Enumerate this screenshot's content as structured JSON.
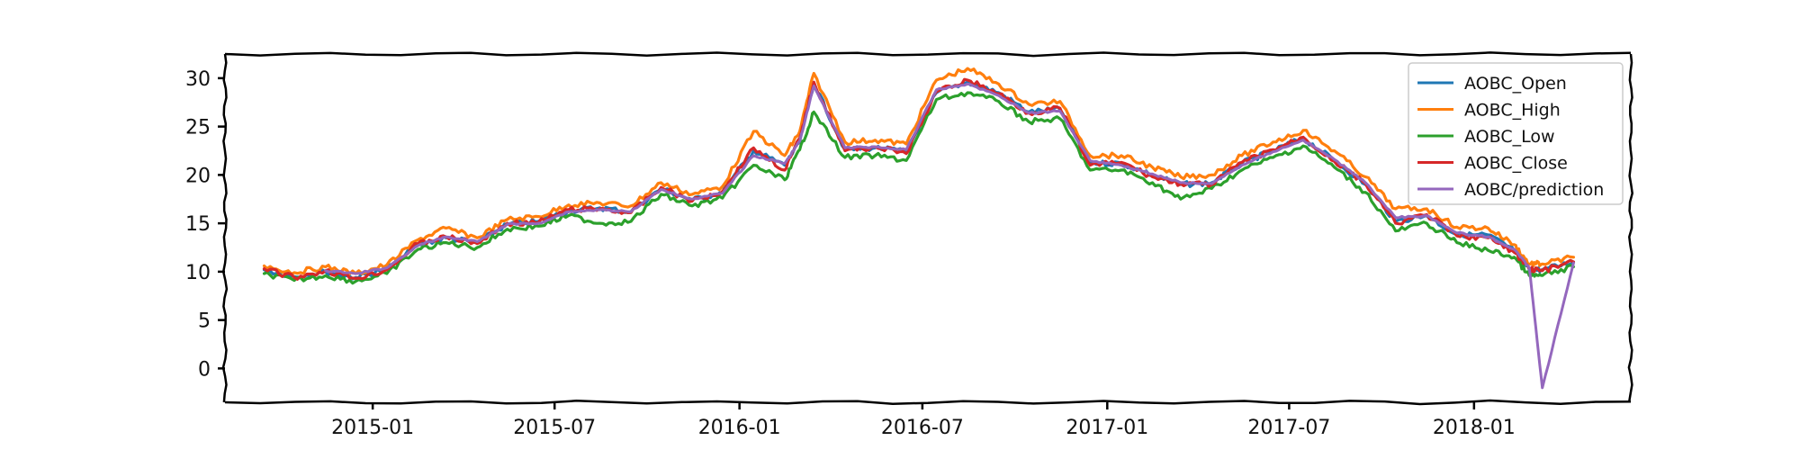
{
  "chart_data": {
    "type": "line",
    "title": "",
    "xlabel": "",
    "ylabel": "",
    "x_ticks": [
      "2015-01",
      "2015-07",
      "2016-01",
      "2016-07",
      "2017-01",
      "2017-07",
      "2018-01"
    ],
    "y_ticks": [
      0,
      5,
      10,
      15,
      20,
      25,
      30
    ],
    "xlim": [
      "2014-08-07",
      "2018-06-06"
    ],
    "ylim": [
      -3.5,
      32.5
    ],
    "grid": false,
    "legend_position": "top-right",
    "x": [
      "2014-09-15",
      "2014-10-15",
      "2014-11-15",
      "2014-12-15",
      "2015-01-15",
      "2015-02-15",
      "2015-03-15",
      "2015-04-15",
      "2015-05-15",
      "2015-06-15",
      "2015-07-15",
      "2015-08-15",
      "2015-09-15",
      "2015-10-15",
      "2015-11-15",
      "2015-12-15",
      "2016-01-15",
      "2016-02-15",
      "2016-03-01",
      "2016-03-15",
      "2016-04-15",
      "2016-05-15",
      "2016-06-15",
      "2016-07-15",
      "2016-08-15",
      "2016-09-15",
      "2016-10-15",
      "2016-11-15",
      "2016-12-15",
      "2017-01-15",
      "2017-02-15",
      "2017-03-15",
      "2017-04-15",
      "2017-05-15",
      "2017-06-15",
      "2017-07-15",
      "2017-08-15",
      "2017-09-15",
      "2017-10-15",
      "2017-11-15",
      "2017-12-15",
      "2018-01-15",
      "2018-02-10",
      "2018-02-25",
      "2018-03-10",
      "2018-04-10"
    ],
    "series": [
      {
        "name": "AOBC_Open",
        "color": "#1f77b4",
        "values": [
          10.2,
          9.5,
          10.0,
          9.4,
          10.3,
          12.8,
          13.5,
          13.0,
          14.9,
          15.2,
          16.3,
          16.6,
          16.2,
          18.6,
          17.4,
          18.2,
          22.5,
          21.0,
          23.5,
          29.5,
          22.6,
          22.8,
          22.4,
          28.5,
          29.6,
          28.5,
          26.5,
          26.8,
          21.2,
          21.2,
          20.0,
          19.0,
          19.2,
          21.2,
          22.5,
          23.8,
          21.5,
          19.0,
          15.2,
          15.8,
          13.8,
          13.8,
          12.2,
          10.2,
          10.2,
          11.0
        ]
      },
      {
        "name": "AOBC_High",
        "color": "#ff7f0e",
        "values": [
          10.6,
          9.9,
          10.5,
          9.8,
          10.7,
          13.3,
          14.5,
          13.5,
          15.4,
          15.7,
          16.9,
          17.1,
          16.8,
          19.2,
          18.0,
          18.8,
          24.5,
          22.0,
          24.5,
          30.5,
          23.4,
          23.6,
          23.2,
          29.8,
          31.0,
          29.4,
          27.3,
          27.6,
          22.0,
          22.0,
          20.8,
          19.8,
          20.0,
          22.0,
          23.4,
          24.6,
          22.5,
          19.8,
          16.5,
          16.5,
          14.6,
          14.5,
          12.8,
          10.8,
          10.8,
          11.5
        ]
      },
      {
        "name": "AOBC_Low",
        "color": "#2ca02c",
        "values": [
          9.8,
          9.1,
          9.6,
          9.0,
          9.8,
          12.3,
          13.0,
          12.5,
          14.4,
          14.7,
          15.8,
          15.0,
          15.2,
          18.0,
          16.8,
          17.6,
          21.0,
          19.5,
          22.6,
          26.5,
          21.8,
          22.0,
          21.5,
          27.8,
          28.5,
          27.6,
          25.5,
          25.8,
          20.5,
          20.5,
          19.2,
          17.5,
          18.6,
          20.5,
          21.8,
          23.0,
          20.8,
          18.2,
          14.2,
          15.0,
          13.0,
          12.2,
          11.5,
          9.6,
          9.6,
          10.5
        ]
      },
      {
        "name": "AOBC_Close",
        "color": "#d62728",
        "values": [
          10.3,
          9.4,
          10.1,
          9.3,
          10.2,
          12.9,
          13.6,
          12.9,
          15.0,
          15.1,
          16.4,
          16.5,
          16.1,
          18.7,
          17.3,
          18.3,
          22.8,
          20.5,
          23.8,
          29.6,
          22.5,
          22.9,
          22.2,
          28.6,
          29.8,
          28.4,
          26.4,
          26.9,
          21.0,
          21.3,
          19.8,
          19.1,
          19.0,
          21.3,
          22.6,
          23.9,
          21.4,
          19.1,
          15.0,
          15.9,
          13.7,
          13.5,
          12.0,
          10.3,
          10.1,
          11.0
        ]
      },
      {
        "name": "AOBC/prediction",
        "color": "#9467bd",
        "values": [
          null,
          null,
          10.1,
          9.8,
          10.4,
          12.7,
          13.6,
          13.1,
          14.9,
          15.0,
          16.2,
          16.4,
          16.2,
          18.5,
          17.5,
          18.1,
          22.0,
          21.2,
          23.5,
          29.2,
          22.8,
          22.9,
          22.6,
          28.8,
          29.4,
          28.2,
          26.4,
          26.6,
          21.5,
          21.0,
          20.1,
          19.2,
          19.1,
          21.0,
          22.4,
          23.6,
          21.6,
          19.2,
          15.6,
          15.8,
          14.0,
          13.6,
          12.3,
          10.4,
          -2.0,
          10.9
        ]
      }
    ]
  }
}
